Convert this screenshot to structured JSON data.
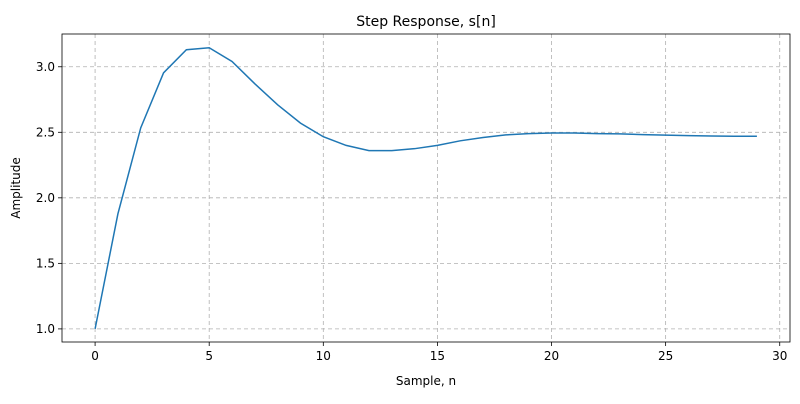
{
  "chart_data": {
    "type": "line",
    "title": "Step Response, s[n]",
    "x_label": "Sample, n",
    "y_label": "Amplitude",
    "x": [
      0,
      1,
      2,
      3,
      4,
      5,
      6,
      7,
      8,
      9,
      10,
      11,
      12,
      13,
      14,
      15,
      16,
      17,
      18,
      19,
      20,
      21,
      22,
      23,
      24,
      25,
      26,
      27,
      28,
      29
    ],
    "series": [
      {
        "name": "s[n]",
        "color": "#1f77b4",
        "values": [
          1.0,
          1.878,
          2.534,
          2.954,
          3.13,
          3.145,
          3.04,
          2.87,
          2.71,
          2.57,
          2.466,
          2.4,
          2.36,
          2.36,
          2.375,
          2.4,
          2.435,
          2.46,
          2.48,
          2.49,
          2.495,
          2.495,
          2.49,
          2.488,
          2.482,
          2.478,
          2.475,
          2.472,
          2.47,
          2.47
        ]
      }
    ],
    "xlim": [
      -1.45,
      30.45
    ],
    "ylim": [
      0.9,
      3.25
    ],
    "xticks": [
      0,
      5,
      10,
      15,
      20,
      25,
      30
    ],
    "yticks": [
      {
        "value": 1,
        "label": "1.0"
      },
      {
        "value": 1.5,
        "label": "1.5"
      },
      {
        "value": 2,
        "label": "2.0"
      },
      {
        "value": 2.5,
        "label": "2.5"
      },
      {
        "value": 3,
        "label": "3.0"
      }
    ],
    "grid": true
  }
}
